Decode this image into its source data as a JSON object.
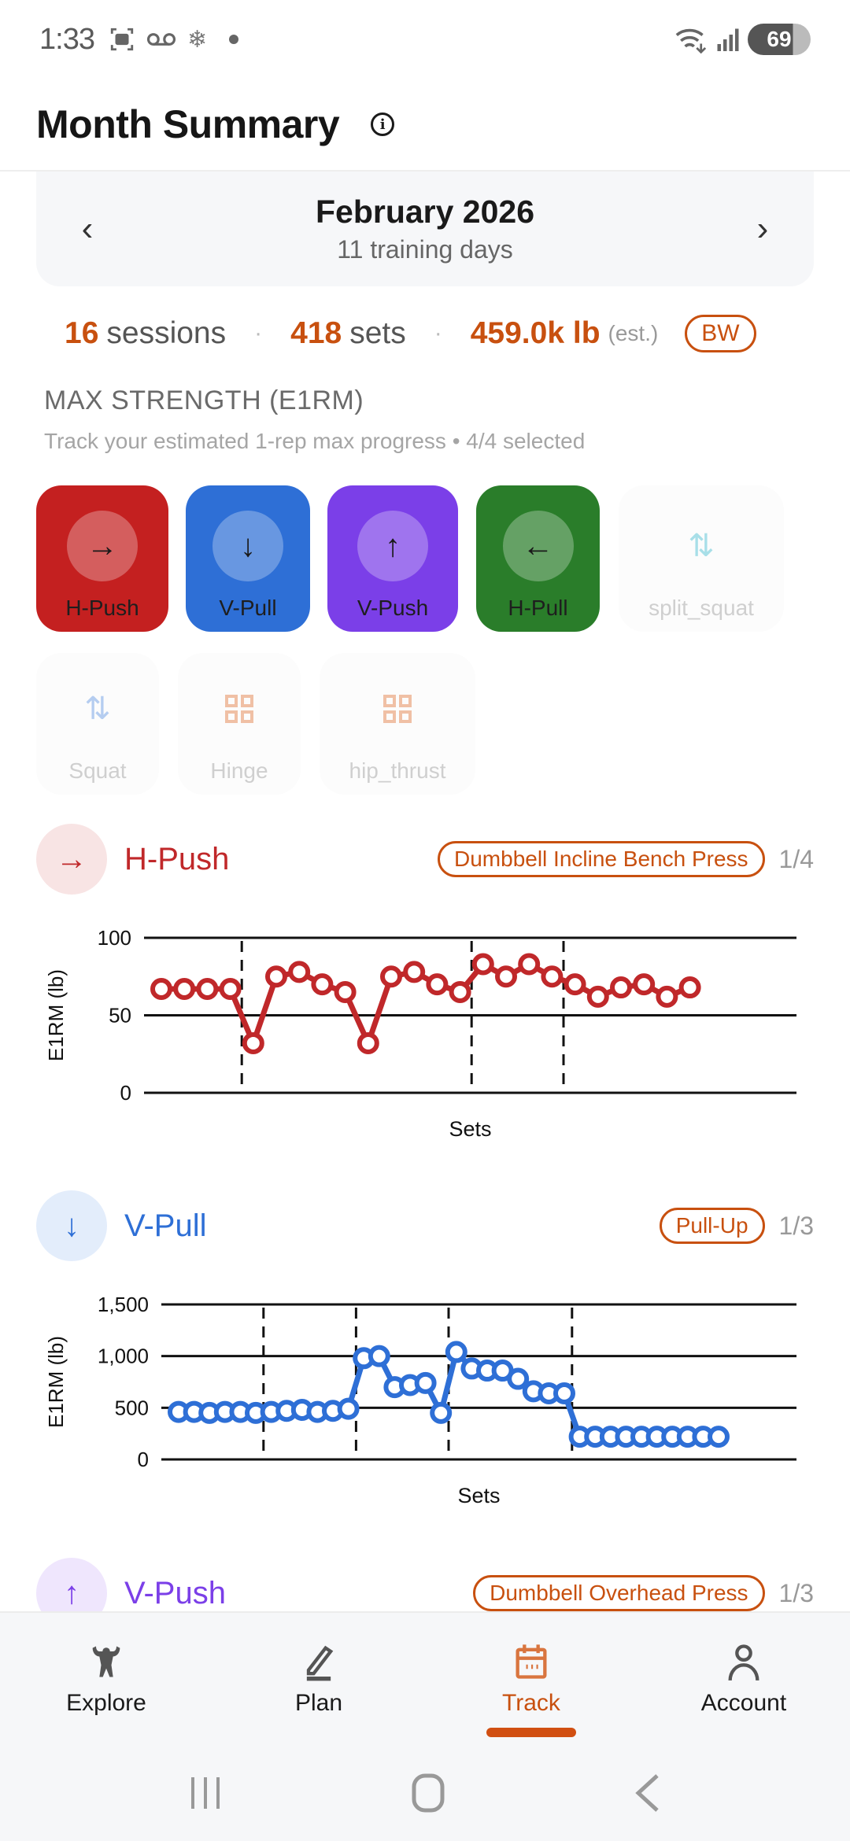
{
  "status_bar": {
    "time": "1:33",
    "battery": "69",
    "left_icons": [
      "screenshot-icon",
      "voicemail-icon",
      "snowflake-icon",
      "dot-icon"
    ],
    "right_icons": [
      "wifi-icon",
      "signal-icon",
      "battery-icon"
    ]
  },
  "header": {
    "title": "Month Summary",
    "info_icon": "i"
  },
  "month": {
    "prev": "‹",
    "next": "›",
    "name": "February 2026",
    "subtitle": "11 training days"
  },
  "stats": {
    "sessions_num": "16",
    "sessions_unit": "sessions",
    "sets_num": "418",
    "sets_unit": "sets",
    "volume_num": "459.0k lb",
    "volume_note": "(est.)",
    "separator": "·",
    "bw_label": "BW"
  },
  "section": {
    "title": "MAX STRENGTH (E1RM)",
    "subtitle": "Track your estimated 1-rep max progress • 4/4 selected"
  },
  "chips": [
    {
      "label": "H-Push",
      "icon": "→",
      "active": true,
      "color": "#c42020"
    },
    {
      "label": "V-Pull",
      "icon": "↓",
      "active": true,
      "color": "#2e6fd6"
    },
    {
      "label": "V-Push",
      "icon": "↑",
      "active": true,
      "color": "#7b3fe8"
    },
    {
      "label": "H-Pull",
      "icon": "←",
      "active": true,
      "color": "#2a7d2a"
    },
    {
      "label": "split_squat",
      "icon": "⇅",
      "active": false,
      "color": "#a8dfe8"
    },
    {
      "label": "Squat",
      "icon": "⇅",
      "active": false,
      "color": "#b5cdf0"
    },
    {
      "label": "Hinge",
      "icon": "grid",
      "active": false,
      "color": "#f0c0a5"
    },
    {
      "label": "hip_thrust",
      "icon": "grid",
      "active": false,
      "color": "#f0c0a5"
    }
  ],
  "patterns": [
    {
      "name": "H-Push",
      "icon": "→",
      "color": "#c0282a",
      "bg": "#f8e4e4",
      "exercise": "Dumbbell Incline Bench Press",
      "count": "1/4"
    },
    {
      "name": "V-Pull",
      "icon": "↓",
      "color": "#2e6fd6",
      "bg": "#e3edfb",
      "exercise": "Pull-Up",
      "count": "1/3"
    },
    {
      "name": "V-Push",
      "icon": "↑",
      "color": "#7b3fe8",
      "bg": "#efe6fd",
      "exercise": "Dumbbell Overhead Press",
      "count": "1/3"
    }
  ],
  "chart_data": [
    {
      "type": "line",
      "title": "H-Push — Dumbbell Incline Bench Press",
      "xlabel": "Sets",
      "ylabel": "E1RM (lb)",
      "ylim": [
        0,
        100
      ],
      "yticks": [
        "0",
        "50",
        "100"
      ],
      "grid": true,
      "session_breaks_after_index": [
        3,
        13,
        17
      ],
      "series": [
        {
          "name": "E1RM",
          "color": "#c0282a",
          "values": [
            67,
            67,
            67,
            67,
            32,
            75,
            78,
            70,
            65,
            32,
            75,
            78,
            70,
            65,
            83,
            75,
            83,
            75,
            70,
            62,
            68,
            70,
            62,
            68
          ]
        }
      ]
    },
    {
      "type": "line",
      "title": "V-Pull — Pull-Up",
      "xlabel": "Sets",
      "ylabel": "E1RM (lb)",
      "ylim": [
        0,
        1500
      ],
      "yticks": [
        "0",
        "500",
        "1,000",
        "1,500"
      ],
      "grid": true,
      "session_breaks_after_index": [
        5,
        11,
        17,
        25
      ],
      "series": [
        {
          "name": "E1RM",
          "color": "#2e6fd6",
          "values": [
            460,
            460,
            450,
            460,
            460,
            450,
            460,
            470,
            480,
            460,
            470,
            490,
            980,
            1000,
            700,
            720,
            740,
            450,
            1040,
            880,
            860,
            860,
            780,
            660,
            640,
            640,
            220,
            220,
            220,
            220,
            220,
            220,
            220,
            220,
            220,
            220
          ]
        }
      ]
    }
  ],
  "bottom_nav": [
    {
      "label": "Explore",
      "icon": "bodybuilder-icon",
      "active": false
    },
    {
      "label": "Plan",
      "icon": "pencil-icon",
      "active": false
    },
    {
      "label": "Track",
      "icon": "calendar-icon",
      "active": true
    },
    {
      "label": "Account",
      "icon": "person-icon",
      "active": false
    }
  ],
  "colors": {
    "accent": "#c8500f",
    "hpush": "#c0282a",
    "vpull": "#2e6fd6",
    "vpush": "#7b3fe8",
    "hpull": "#2a7d2a"
  }
}
